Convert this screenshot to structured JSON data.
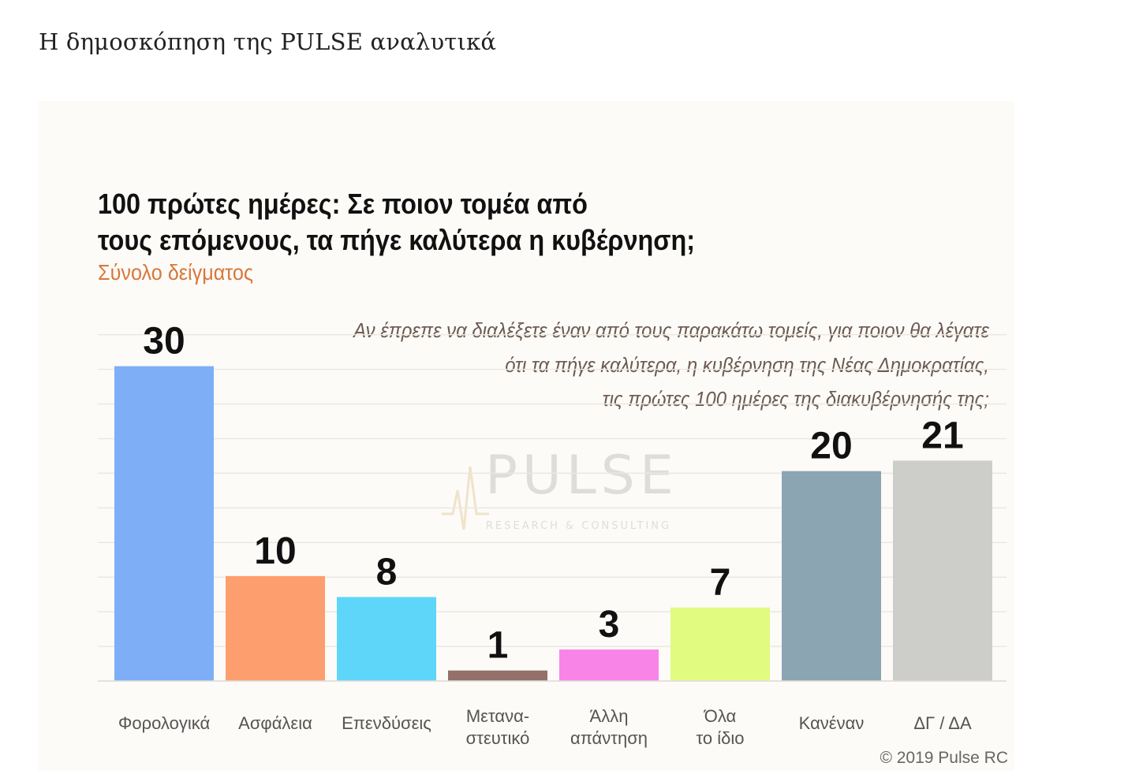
{
  "page": {
    "heading": "Η δημοσκόπηση της PULSE αναλυτικά"
  },
  "chart_data": {
    "type": "bar",
    "title_line1": "100 πρώτες ημέρες: Σε ποιον τομέα από",
    "title_line2": "τους επόμενους, τα πήγε καλύτερα η κυβέρνηση;",
    "subtitle": "Σύνολο δείγματος",
    "question_lines": [
      "Αν έπρεπε να διαλέξετε έναν από τους παρακάτω τομείς, για ποιον θα λέγατε",
      "ότι τα πήγε καλύτερα, η κυβέρνηση της Νέας Δημοκρατίας,",
      "τις πρώτες 100 ημέρες της διακυβέρνησής της;"
    ],
    "categories": [
      [
        "Φορολογικά"
      ],
      [
        "Ασφάλεια"
      ],
      [
        "Επενδύσεις"
      ],
      [
        "Μετανα-",
        "στευτικό"
      ],
      [
        "Άλλη",
        "απάντηση"
      ],
      [
        "Όλα",
        "το ίδιο"
      ],
      [
        "Κανέναν"
      ],
      [
        "ΔΓ / ΔΑ"
      ]
    ],
    "values": [
      30,
      10,
      8,
      1,
      3,
      7,
      20,
      21
    ],
    "colors": [
      "#7eaef5",
      "#fd9e6e",
      "#5dd6f9",
      "#93706a",
      "#f884e8",
      "#e1fb80",
      "#8ba5b3",
      "#cdcdca"
    ],
    "ylim": [
      0,
      35
    ],
    "grid": true,
    "xlabel": "",
    "ylabel": "",
    "watermark": {
      "brand": "PULSE",
      "tagline": "RESEARCH & CONSULTING"
    },
    "credit": "© 2019 Pulse RC"
  }
}
